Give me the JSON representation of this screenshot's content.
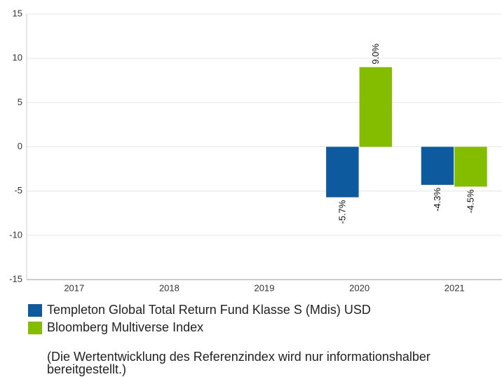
{
  "chart_data": {
    "type": "bar",
    "categories": [
      "2017",
      "2018",
      "2019",
      "2020",
      "2021"
    ],
    "series": [
      {
        "name": "Templeton Global Total Return Fund Klasse S (Mdis) USD",
        "color": "#0d5a9e",
        "values": [
          null,
          null,
          null,
          -5.7,
          -4.3
        ],
        "value_labels": [
          null,
          null,
          null,
          "-5.7%",
          "-4.3%"
        ]
      },
      {
        "name": "Bloomberg Multiverse Index",
        "color": "#84bd00",
        "values": [
          null,
          null,
          null,
          9.0,
          -4.5
        ],
        "value_labels": [
          null,
          null,
          null,
          "9.0%",
          "-4.5%"
        ]
      }
    ],
    "ylim": [
      -15,
      15
    ],
    "yticks": [
      -15,
      -10,
      -5,
      0,
      5,
      10,
      15
    ],
    "grid": true,
    "note": "(Die Wertentwicklung des Referenzindex wird nur informationshalber bereitgestellt.)"
  }
}
